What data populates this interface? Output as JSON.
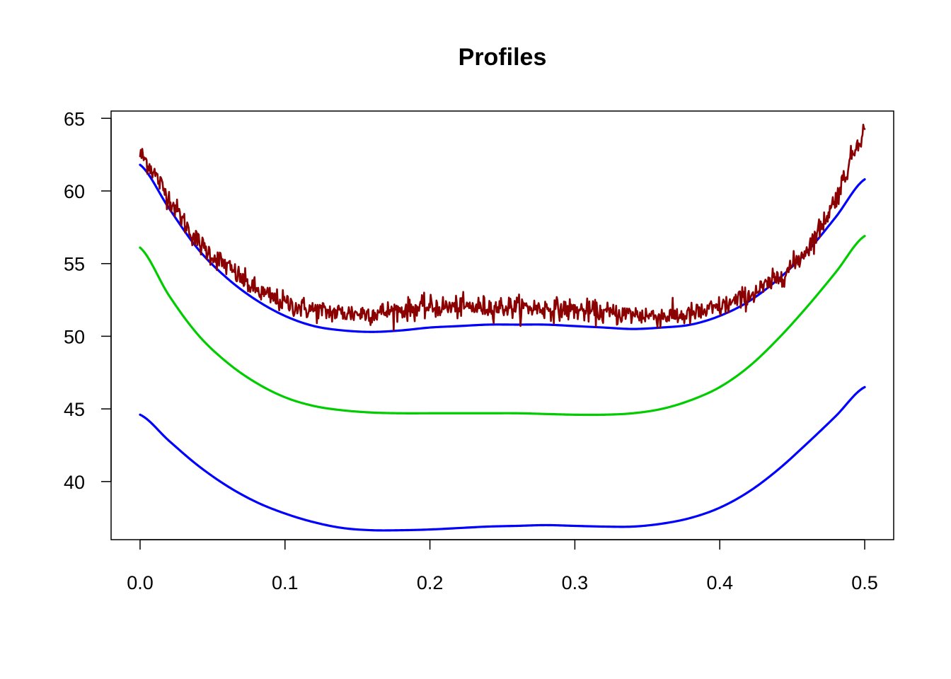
{
  "chart_data": {
    "type": "line",
    "title": "Profiles",
    "xlabel": "",
    "ylabel": "",
    "xlim": [
      -0.02,
      0.52
    ],
    "ylim": [
      36,
      65.5
    ],
    "x_ticks": [
      0.0,
      0.1,
      0.2,
      0.3,
      0.4,
      0.5
    ],
    "x_tick_labels": [
      "0.0",
      "0.1",
      "0.2",
      "0.3",
      "0.4",
      "0.5"
    ],
    "y_ticks": [
      40,
      45,
      50,
      55,
      60,
      65
    ],
    "y_tick_labels": [
      "40",
      "45",
      "50",
      "55",
      "60",
      "65"
    ],
    "grid": false,
    "legend": "none",
    "series": [
      {
        "color": "#8B0000",
        "style": "noisy",
        "x": [
          0.0,
          0.02,
          0.04,
          0.06,
          0.08,
          0.1,
          0.12,
          0.14,
          0.16,
          0.18,
          0.2,
          0.22,
          0.24,
          0.26,
          0.28,
          0.3,
          0.32,
          0.34,
          0.36,
          0.38,
          0.4,
          0.42,
          0.44,
          0.46,
          0.48,
          0.5
        ],
        "values": [
          62.5,
          59.5,
          56.5,
          54.8,
          53.2,
          52.3,
          51.8,
          51.6,
          51.6,
          51.8,
          52.0,
          52.0,
          52.0,
          52.0,
          51.9,
          51.8,
          51.6,
          51.5,
          51.4,
          51.5,
          52.0,
          52.8,
          54.0,
          56.0,
          59.5,
          64.2
        ]
      },
      {
        "color": "#0000FF",
        "x": [
          0.0,
          0.02,
          0.04,
          0.06,
          0.08,
          0.1,
          0.12,
          0.14,
          0.16,
          0.18,
          0.2,
          0.22,
          0.24,
          0.26,
          0.28,
          0.3,
          0.32,
          0.34,
          0.36,
          0.38,
          0.4,
          0.42,
          0.44,
          0.46,
          0.48,
          0.5
        ],
        "values": [
          61.8,
          58.8,
          56.0,
          54.0,
          52.5,
          51.4,
          50.7,
          50.4,
          50.3,
          50.4,
          50.6,
          50.7,
          50.8,
          50.8,
          50.8,
          50.7,
          50.6,
          50.5,
          50.6,
          50.8,
          51.4,
          52.4,
          53.9,
          55.8,
          58.2,
          60.8
        ]
      },
      {
        "color": "#00CC00",
        "x": [
          0.0,
          0.02,
          0.04,
          0.06,
          0.08,
          0.1,
          0.12,
          0.14,
          0.16,
          0.18,
          0.2,
          0.22,
          0.24,
          0.26,
          0.28,
          0.3,
          0.32,
          0.34,
          0.36,
          0.38,
          0.4,
          0.42,
          0.44,
          0.46,
          0.48,
          0.5
        ],
        "values": [
          56.1,
          52.8,
          50.1,
          48.2,
          46.8,
          45.8,
          45.2,
          44.9,
          44.75,
          44.7,
          44.7,
          44.7,
          44.7,
          44.7,
          44.65,
          44.6,
          44.6,
          44.7,
          45.0,
          45.6,
          46.5,
          47.9,
          49.8,
          52.0,
          54.4,
          56.9
        ]
      },
      {
        "color": "#0000FF",
        "x": [
          0.0,
          0.02,
          0.04,
          0.06,
          0.08,
          0.1,
          0.12,
          0.14,
          0.16,
          0.18,
          0.2,
          0.22,
          0.24,
          0.26,
          0.28,
          0.3,
          0.32,
          0.34,
          0.36,
          0.38,
          0.4,
          0.42,
          0.44,
          0.46,
          0.48,
          0.5
        ],
        "values": [
          44.6,
          42.8,
          41.1,
          39.7,
          38.6,
          37.8,
          37.2,
          36.8,
          36.65,
          36.65,
          36.7,
          36.8,
          36.9,
          36.95,
          37.0,
          36.95,
          36.9,
          36.9,
          37.1,
          37.5,
          38.2,
          39.3,
          40.8,
          42.6,
          44.5,
          46.5
        ]
      }
    ]
  }
}
